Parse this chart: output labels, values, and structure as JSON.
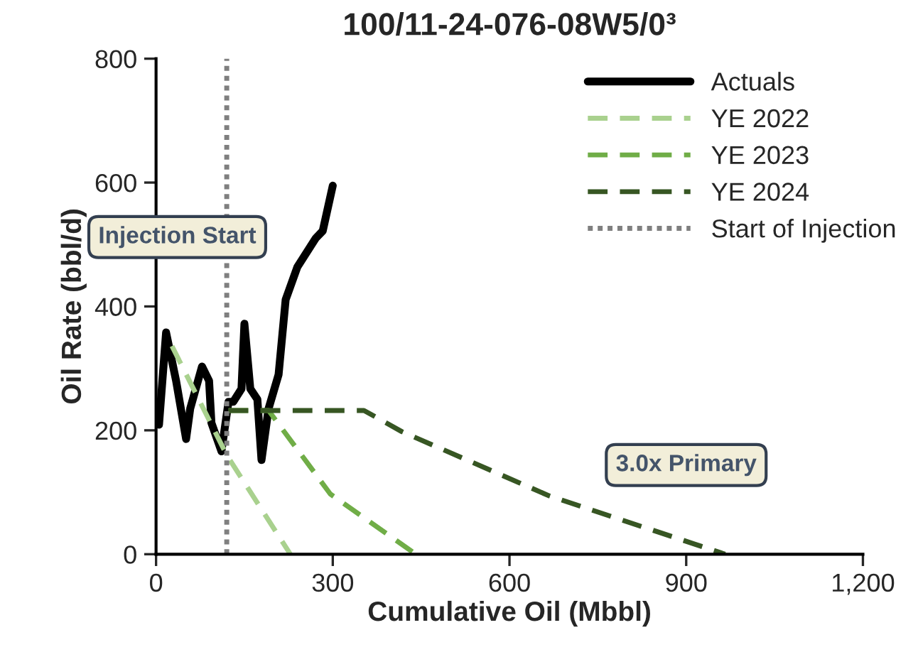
{
  "chart_data": {
    "type": "line",
    "title": "100/11-24-076-08W5/0³",
    "xlabel": "Cumulative Oil (Mbbl)",
    "ylabel": "Oil Rate (bbl/d)",
    "series": [
      {
        "name": "Actuals",
        "color": "#000000",
        "line_style": "solid",
        "x": [
          5,
          17,
          34,
          51,
          58,
          78,
          90,
          94,
          111,
          123,
          131,
          145,
          150,
          160,
          172,
          179,
          191,
          208,
          220,
          240,
          271,
          283,
          300
        ],
        "values": [
          209,
          358,
          280,
          186,
          235,
          303,
          280,
          212,
          166,
          246,
          246,
          267,
          372,
          267,
          250,
          152,
          235,
          290,
          411,
          464,
          510,
          522,
          595
        ]
      },
      {
        "name": "YE 2022",
        "color": "#a9d18e",
        "line_style": "dashed",
        "x": [
          27,
          120,
          228
        ],
        "values": [
          336,
          160,
          0
        ]
      },
      {
        "name": "YE 2023",
        "color": "#70ad47",
        "line_style": "dashed",
        "x": [
          123,
          191,
          296,
          441
        ],
        "values": [
          232,
          232,
          97,
          0
        ]
      },
      {
        "name": "YE 2024",
        "color": "#375623",
        "line_style": "dashed",
        "x": [
          123,
          353,
          417,
          668,
          966
        ],
        "values": [
          232,
          232,
          198,
          94,
          0
        ]
      },
      {
        "name": "Start of Injection",
        "color": "#7f7f7f",
        "line_style": "dotted",
        "x": [
          120,
          120
        ],
        "values": [
          0,
          800
        ]
      }
    ],
    "annotations": [
      "Injection Start",
      "3.0x Primary"
    ],
    "xlim": [
      0,
      1200
    ],
    "xticks": [
      0,
      300,
      600,
      900,
      {
        "value": 1200,
        "label": "1,200"
      }
    ],
    "ylim": [
      0,
      800
    ],
    "yticks": [
      0,
      200,
      400,
      600,
      800
    ],
    "grid": false,
    "legend": "top right"
  }
}
